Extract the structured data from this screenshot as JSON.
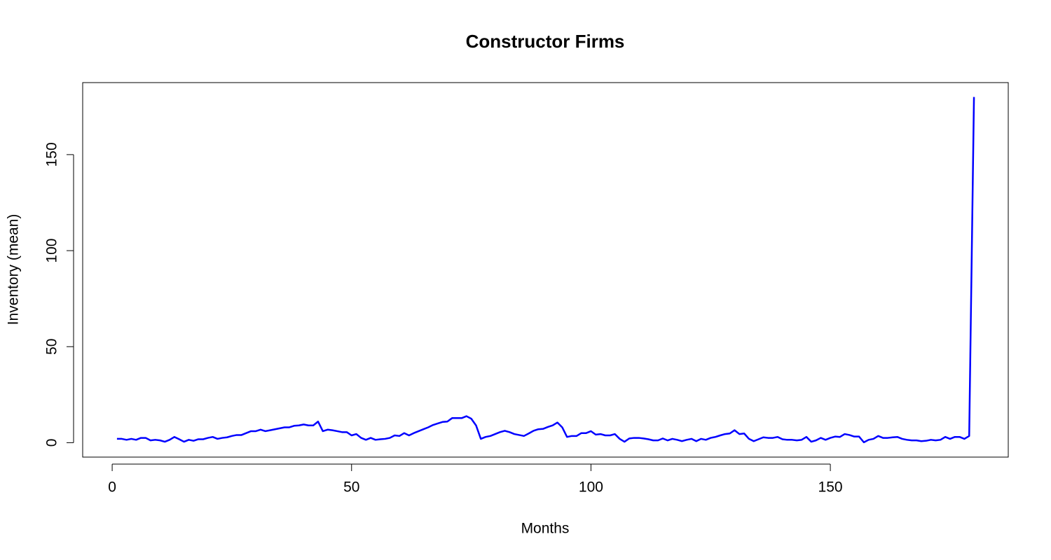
{
  "chart_data": {
    "type": "line",
    "title": "Constructor Firms",
    "xlabel": "Months",
    "ylabel": "Inventory (mean)",
    "x": [
      1,
      2,
      3,
      4,
      5,
      6,
      7,
      8,
      9,
      10,
      11,
      12,
      13,
      14,
      15,
      16,
      17,
      18,
      19,
      20,
      21,
      22,
      23,
      24,
      25,
      26,
      27,
      28,
      29,
      30,
      31,
      32,
      33,
      34,
      35,
      36,
      37,
      38,
      39,
      40,
      41,
      42,
      43,
      44,
      45,
      46,
      47,
      48,
      49,
      50,
      51,
      52,
      53,
      54,
      55,
      56,
      57,
      58,
      59,
      60,
      61,
      62,
      63,
      64,
      65,
      66,
      67,
      68,
      69,
      70,
      71,
      72,
      73,
      74,
      75,
      76,
      77,
      78,
      79,
      80,
      81,
      82,
      83,
      84,
      85,
      86,
      87,
      88,
      89,
      90,
      91,
      92,
      93,
      94,
      95,
      96,
      97,
      98,
      99,
      100,
      101,
      102,
      103,
      104,
      105,
      106,
      107,
      108,
      109,
      110,
      111,
      112,
      113,
      114,
      115,
      116,
      117,
      118,
      119,
      120,
      121,
      122,
      123,
      124,
      125,
      126,
      127,
      128,
      129,
      130,
      131,
      132,
      133,
      134,
      135,
      136,
      137,
      138,
      139,
      140,
      141,
      142,
      143,
      144,
      145,
      146,
      147,
      148,
      149,
      150,
      151,
      152,
      153,
      154,
      155,
      156,
      157,
      158,
      159,
      160,
      161,
      162,
      163,
      164,
      165,
      166,
      167,
      168,
      169,
      170,
      171,
      172,
      173,
      174,
      175,
      176,
      177,
      178,
      179,
      180
    ],
    "series": [
      {
        "name": "Inventory",
        "color": "#0000ff",
        "values": [
          2,
          2,
          1.5,
          2,
          1.5,
          2.5,
          2.5,
          1.2,
          1.5,
          1.2,
          0.5,
          1.5,
          3,
          1.8,
          0.5,
          1.5,
          1,
          1.8,
          1.8,
          2.5,
          3,
          2,
          2.5,
          2.8,
          3.5,
          4,
          4,
          5,
          6,
          6,
          6.8,
          6,
          6.5,
          7,
          7.5,
          8,
          8,
          8.8,
          9,
          9.5,
          9,
          9,
          11,
          6,
          6.8,
          6.5,
          6,
          5.5,
          5.5,
          3.8,
          4.5,
          2.5,
          1.5,
          2.5,
          1.5,
          1.8,
          2,
          2.5,
          3.8,
          3.5,
          5,
          3.8,
          5,
          6,
          7,
          8,
          9.2,
          10,
          10.8,
          11,
          12.8,
          12.8,
          12.8,
          13.8,
          12.5,
          9,
          2,
          3,
          3.5,
          4.5,
          5.5,
          6.2,
          5.5,
          4.5,
          4,
          3.5,
          4.8,
          6.2,
          7,
          7.2,
          8.2,
          9,
          10.5,
          8,
          3,
          3.5,
          3.5,
          5,
          5,
          6,
          4.2,
          4.5,
          3.8,
          3.8,
          4.5,
          2,
          0.5,
          2.2,
          2.5,
          2.5,
          2.2,
          1.8,
          1.2,
          1.2,
          2.2,
          1.2,
          2,
          1.5,
          0.8,
          1.5,
          2,
          0.8,
          2,
          1.5,
          2.5,
          3,
          3.8,
          4.5,
          4.8,
          6.5,
          4.5,
          4.8,
          2,
          0.8,
          1.8,
          2.8,
          2.5,
          2.5,
          3,
          1.8,
          1.5,
          1.5,
          1.2,
          1.5,
          3,
          0.5,
          1.2,
          2.5,
          1.5,
          2.5,
          3.2,
          3,
          4.5,
          4,
          3.2,
          3.2,
          0.2,
          1.5,
          2,
          3.5,
          2.5,
          2.5,
          2.8,
          3,
          2,
          1.5,
          1.2,
          1.2,
          0.8,
          1,
          1.5,
          1.2,
          1.5,
          3,
          2,
          3,
          3,
          2,
          3.5,
          180
        ]
      }
    ],
    "xlim": [
      -6.16,
      187.16
    ],
    "ylim": [
      -7.5,
      187.5
    ],
    "xticks": [
      0,
      50,
      100,
      150
    ],
    "yticks": [
      0,
      50,
      100,
      150
    ]
  }
}
